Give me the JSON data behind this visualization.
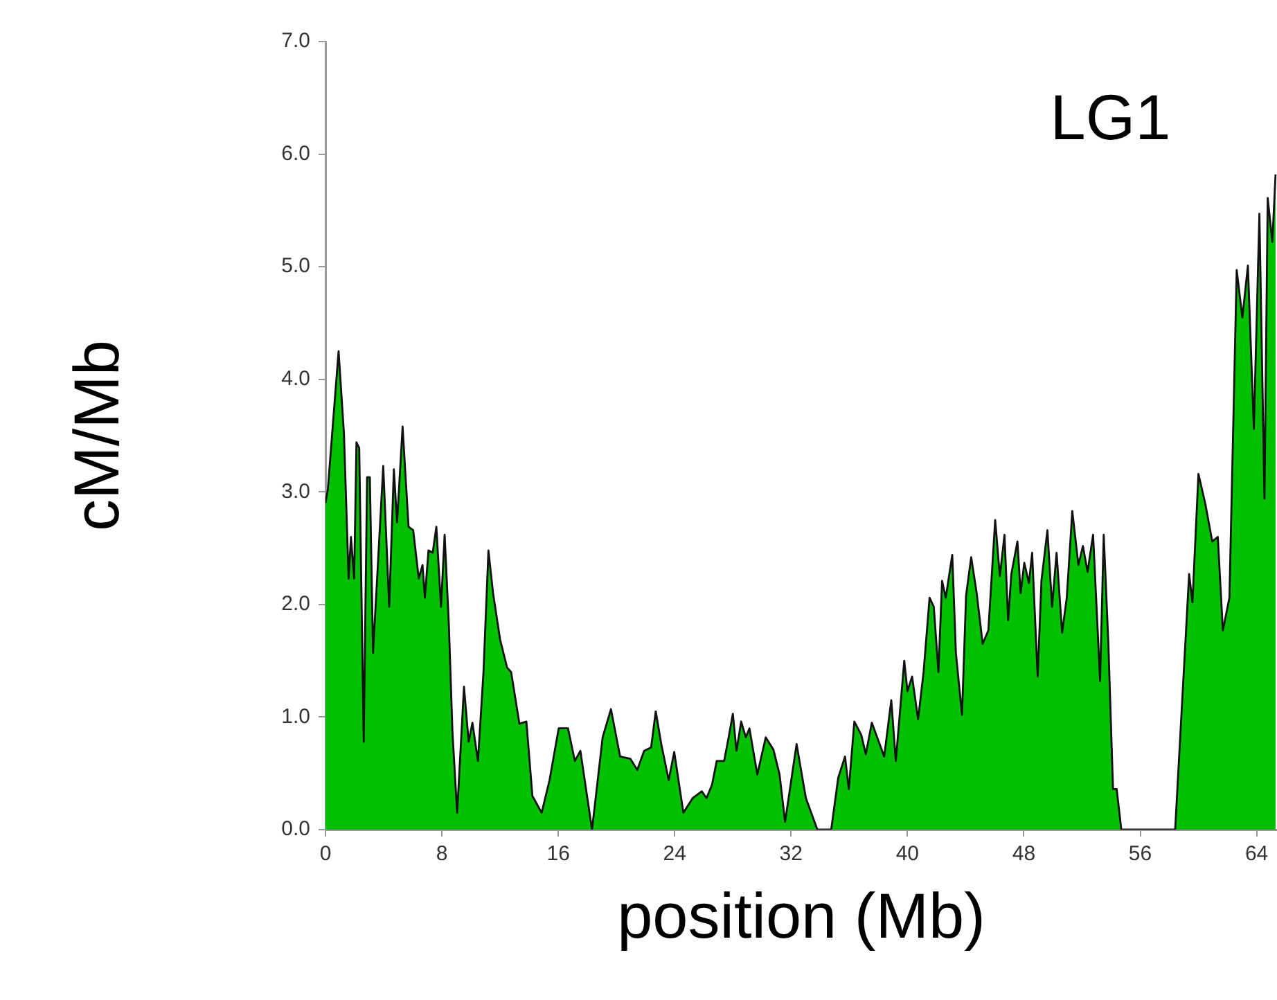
{
  "chart_data": {
    "type": "area",
    "title": "LG1",
    "xlabel": "position (Mb)",
    "ylabel": "cM/Mb",
    "xlim": [
      0,
      65.4
    ],
    "xticks": [
      0,
      8,
      16,
      24,
      32,
      40,
      48,
      56,
      64
    ],
    "ylim": [
      0,
      7
    ],
    "yticks": [
      {
        "value": 0,
        "label": "0.0"
      },
      {
        "value": 1,
        "label": "1.0"
      },
      {
        "value": 2,
        "label": "2.0"
      },
      {
        "value": 3,
        "label": "3.0"
      },
      {
        "value": 4,
        "label": "4.0"
      },
      {
        "value": 5,
        "label": "5.0"
      },
      {
        "value": 6,
        "label": "6.0"
      },
      {
        "value": 7,
        "label": "7.0"
      }
    ],
    "grid": false,
    "legend": false,
    "series": [
      {
        "color": "#00c000",
        "x": [
          0,
          0.16,
          0.9,
          1.27,
          1.59,
          1.75,
          1.97,
          2.13,
          2.32,
          2.63,
          2.86,
          3.05,
          3.27,
          3.97,
          4.38,
          4.7,
          4.92,
          5.3,
          5.71,
          6.03,
          6.41,
          6.67,
          6.83,
          7.08,
          7.37,
          7.62,
          7.94,
          8.19,
          8.48,
          8.73,
          9.05,
          9.52,
          9.84,
          10.1,
          10.48,
          10.86,
          11.2,
          11.52,
          12.0,
          12.48,
          12.76,
          13.33,
          13.81,
          14.22,
          14.86,
          15.4,
          16.03,
          16.67,
          17.14,
          17.52,
          18.32,
          19.05,
          19.62,
          20.25,
          20.95,
          21.43,
          21.9,
          22.38,
          22.7,
          23.08,
          23.59,
          23.97,
          24.6,
          25.24,
          25.87,
          26.19,
          26.57,
          26.89,
          27.4,
          27.71,
          28.0,
          28.25,
          28.57,
          28.89,
          29.14,
          29.68,
          30.26,
          30.79,
          31.21,
          31.59,
          32.38,
          33.02,
          33.81,
          34.76,
          35.24,
          35.71,
          35.97,
          36.35,
          36.83,
          37.14,
          37.55,
          38.4,
          38.89,
          39.2,
          39.78,
          40.0,
          40.32,
          40.73,
          41.11,
          41.52,
          41.81,
          42.13,
          42.38,
          42.63,
          43.08,
          43.33,
          43.75,
          44.03,
          44.38,
          44.76,
          45.17,
          45.56,
          46.03,
          46.35,
          46.67,
          46.92,
          47.14,
          47.56,
          47.78,
          48.03,
          48.35,
          48.57,
          48.95,
          49.21,
          49.62,
          49.94,
          50.25,
          50.63,
          50.95,
          51.33,
          51.75,
          52.06,
          52.38,
          52.76,
          53.24,
          53.49,
          53.81,
          54.13,
          54.38,
          54.7,
          58.4,
          59.36,
          59.59,
          60.0,
          60.48,
          60.95,
          61.33,
          61.68,
          62.13,
          62.63,
          63.02,
          63.4,
          63.81,
          64.19,
          64.54,
          64.76,
          65.08,
          65.3
        ],
        "values": [
          2.9,
          3.02,
          4.25,
          3.52,
          2.23,
          2.6,
          2.23,
          3.44,
          3.39,
          0.78,
          3.13,
          3.13,
          1.57,
          3.23,
          1.98,
          3.2,
          2.73,
          3.58,
          2.69,
          2.66,
          2.23,
          2.35,
          2.06,
          2.48,
          2.46,
          2.69,
          1.98,
          2.62,
          1.82,
          0.86,
          0.15,
          1.27,
          0.78,
          0.95,
          0.61,
          1.4,
          2.48,
          2.1,
          1.69,
          1.44,
          1.4,
          0.94,
          0.96,
          0.3,
          0.15,
          0.44,
          0.9,
          0.9,
          0.61,
          0.7,
          0,
          0.82,
          1.07,
          0.65,
          0.63,
          0.53,
          0.7,
          0.73,
          1.05,
          0.76,
          0.44,
          0.69,
          0.15,
          0.28,
          0.34,
          0.28,
          0.4,
          0.61,
          0.61,
          0.82,
          1.03,
          0.7,
          0.96,
          0.82,
          0.9,
          0.49,
          0.82,
          0.71,
          0.49,
          0.07,
          0.76,
          0.28,
          0,
          0,
          0.46,
          0.65,
          0.36,
          0.96,
          0.84,
          0.67,
          0.95,
          0.65,
          1.15,
          0.61,
          1.5,
          1.23,
          1.36,
          0.98,
          1.4,
          2.06,
          1.98,
          1.4,
          2.21,
          2.06,
          2.44,
          1.57,
          1.02,
          2.08,
          2.42,
          2.1,
          1.65,
          1.77,
          2.75,
          2.25,
          2.62,
          1.86,
          2.27,
          2.56,
          2.1,
          2.37,
          2.19,
          2.46,
          1.36,
          2.21,
          2.66,
          1.98,
          2.46,
          1.75,
          2.06,
          2.83,
          2.35,
          2.52,
          2.29,
          2.62,
          1.32,
          2.62,
          1.65,
          0.36,
          0.36,
          0,
          0,
          2.27,
          2.02,
          3.16,
          2.89,
          2.56,
          2.6,
          1.77,
          2.06,
          4.97,
          4.55,
          5.01,
          3.56,
          5.47,
          2.94,
          5.61,
          5.22,
          5.82
        ]
      }
    ]
  }
}
